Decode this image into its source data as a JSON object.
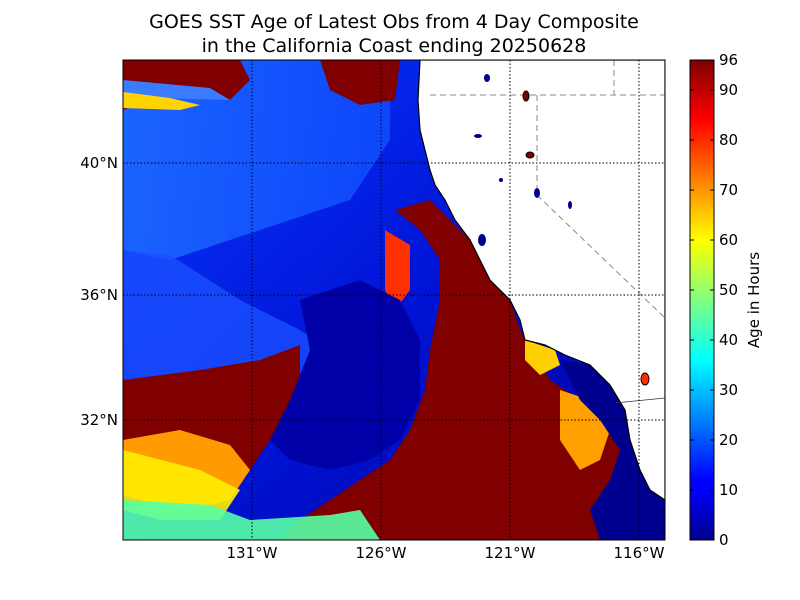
{
  "title_line1": "GOES SST Age of Latest Obs from 4 Day Composite",
  "title_line2": "in the California Coast ending 20250628",
  "map": {
    "lon_labels": [
      {
        "value": -131,
        "text": "131°W"
      },
      {
        "value": -126,
        "text": "126°W"
      },
      {
        "value": -121,
        "text": "121°W"
      },
      {
        "value": -116,
        "text": "116°W"
      }
    ],
    "lat_labels": [
      {
        "value": 40,
        "text": "40°N"
      },
      {
        "value": 36,
        "text": "36°N"
      },
      {
        "value": 32,
        "text": "32°N"
      }
    ],
    "lon_range": [
      -136,
      -115
    ],
    "lat_range": [
      28.3,
      43.4
    ]
  },
  "colorbar": {
    "label": "Age in Hours",
    "range": [
      0,
      96
    ],
    "ticks": [
      0,
      10,
      20,
      30,
      40,
      50,
      60,
      70,
      80,
      90,
      96
    ],
    "colormap": "jet"
  },
  "colors": {
    "land": "#ffffff",
    "old_obs": "#800000",
    "fresh_obs": "#00008f"
  }
}
